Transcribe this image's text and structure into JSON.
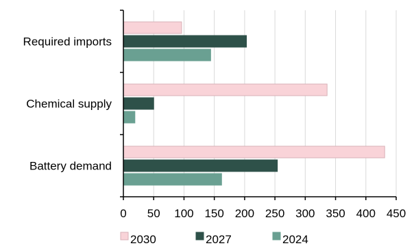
{
  "chart_data": {
    "type": "bar",
    "orientation": "horizontal",
    "categories": [
      "Required imports",
      "Chemical supply",
      "Battery demand"
    ],
    "series": [
      {
        "name": "2030",
        "values": [
          96,
          336,
          431
        ]
      },
      {
        "name": "2027",
        "values": [
          203,
          50,
          254
        ]
      },
      {
        "name": "2024",
        "values": [
          144,
          19,
          162
        ]
      }
    ],
    "xlim": [
      0,
      450
    ],
    "xticks": [
      0,
      50,
      100,
      150,
      200,
      250,
      300,
      350,
      400,
      450
    ],
    "grid": "vertical",
    "legend_position": "bottom",
    "colors": {
      "2030": "#f9d3d8",
      "2027": "#2e5149",
      "2024": "#6aa092",
      "grid": "#d9d9d9",
      "axis": "#000000"
    }
  }
}
